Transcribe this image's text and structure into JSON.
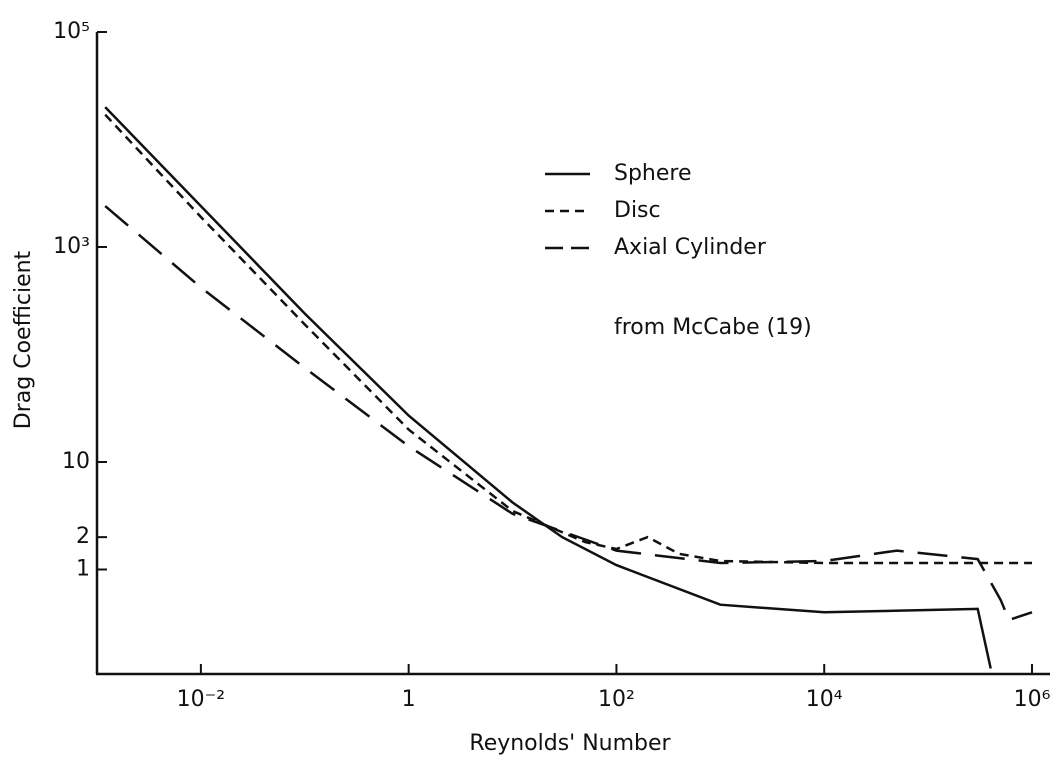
{
  "chart_data": {
    "type": "line",
    "xlabel": "Reynolds' Number",
    "ylabel": "Drag Coefficient",
    "annotation": "from McCabe (19)",
    "log_x": true,
    "log_y": true,
    "grid": false,
    "legend": "upper right",
    "xlim": [
      0.001,
      1000000
    ],
    "ylim": [
      0.1,
      100000
    ],
    "xticks": [
      {
        "value": 0.01,
        "label": "10⁻²"
      },
      1,
      {
        "value": 100,
        "label": "10²"
      },
      {
        "value": 10000,
        "label": "10⁴"
      },
      {
        "value": 1000000,
        "label": "10⁶"
      }
    ],
    "yticks": [
      1,
      2,
      10,
      {
        "value": 1000,
        "label": "10³"
      },
      {
        "value": 100000,
        "label": "10⁵"
      }
    ],
    "series": [
      {
        "name": "Sphere",
        "color": "#111111",
        "dash": "solid",
        "x": [
          0.0012,
          0.01,
          0.1,
          1,
          10,
          30,
          100,
          1000,
          10000,
          100000,
          300000,
          400000
        ],
        "values": [
          20000,
          2400,
          240,
          27,
          4.2,
          2,
          1.1,
          0.47,
          0.4,
          0.42,
          0.43,
          0.12
        ]
      },
      {
        "name": "Disc",
        "color": "#111111",
        "dash": "short",
        "x": [
          0.0012,
          0.01,
          0.1,
          1,
          10,
          50,
          100,
          200,
          400,
          1000,
          10000,
          1000000
        ],
        "values": [
          17000,
          1900,
          190,
          20,
          3.5,
          1.8,
          1.55,
          2.0,
          1.4,
          1.2,
          1.15,
          1.15
        ]
      },
      {
        "name": "Axial Cylinder",
        "color": "#111111",
        "dash": "long",
        "x": [
          0.0012,
          0.01,
          0.1,
          1,
          10,
          50,
          100,
          1000,
          10000,
          50000,
          300000,
          500000,
          600000,
          1000000
        ],
        "values": [
          2400,
          420,
          75,
          14,
          3.3,
          1.9,
          1.5,
          1.15,
          1.2,
          1.5,
          1.25,
          0.52,
          0.34,
          0.4
        ]
      }
    ]
  }
}
